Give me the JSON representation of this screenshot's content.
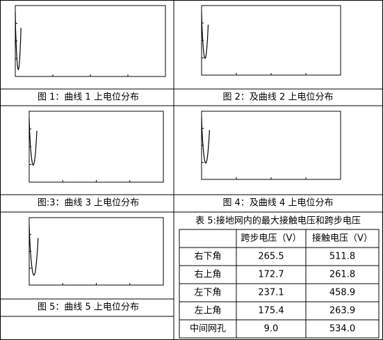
{
  "figures": [
    {
      "caption": "图 1：曲线 1 上电位分布"
    },
    {
      "caption": "图 2：及曲线 2 上电位分布"
    },
    {
      "caption": "图:3：曲线 3 上电位分布"
    },
    {
      "caption": "图 4：及曲线 4 上电位分布"
    },
    {
      "caption": "图 5：曲线 5 上电位分布"
    }
  ],
  "table": {
    "title": "表 5:接地网内的最大接触电压和跨步电压",
    "header": [
      "跨步电压（V）",
      "接触电压（V）"
    ],
    "rows": [
      [
        "右下角",
        "265.5",
        "511.8"
      ],
      [
        "右上角",
        "172.7",
        "261.8"
      ],
      [
        "左下角",
        "237.1",
        "458.9"
      ],
      [
        "左上角",
        "175.4",
        "263.9"
      ],
      [
        "中间网孔",
        "9.0",
        "534.0"
      ]
    ]
  }
}
